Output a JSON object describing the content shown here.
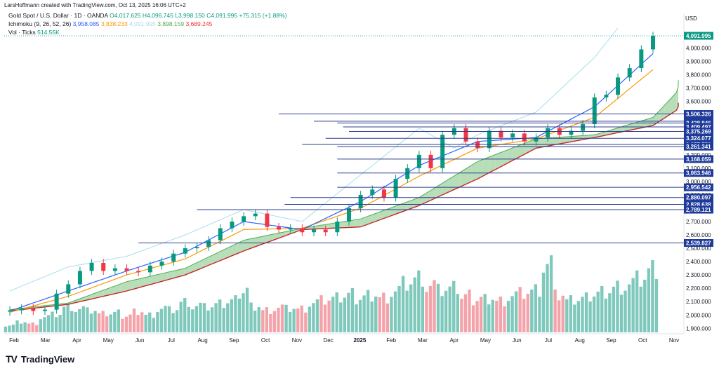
{
  "header": {
    "author_line": "LarsHoffmann created with TradingView.com, Oct 13, 2025 16:06 UTC+2"
  },
  "legend": {
    "symbol": "Gold Spot / U.S. Dollar · 1D · OANDA",
    "ohlc": [
      "O4,017.625",
      "H4,096.745",
      "L3,998.150",
      "C4,091.995",
      "+75.315 (+1.88%)"
    ],
    "ichimoku_label": "Ichimoku (9, 26, 52, 26)",
    "ichimoku_values": [
      "3,958.085",
      "3,838.233",
      "4,091.995",
      "3,898.159",
      "3,689.245"
    ],
    "vol_label": "Vol · Ticks",
    "vol_value": "514.55K"
  },
  "currency": "USD",
  "brand": {
    "logo": "TV",
    "name": "TradingView"
  },
  "colors": {
    "tenkan": "#2962ff",
    "kijun": "#ff9800",
    "chikou": "#a9dcf0",
    "span_a": "#4caf50",
    "span_b": "#c62828",
    "cloud_green": "#a5d6a7",
    "cloud_red": "#ef9a9a",
    "up": "#089981",
    "down": "#f23645",
    "level_line": "#2a3f8f",
    "last_price_bg": "#089981"
  },
  "chart_data": {
    "type": "candlestick_ichimoku",
    "title": "Gold Spot / U.S. Dollar · 1D · OANDA",
    "x_ticks": [
      "Feb",
      "Mar",
      "Apr",
      "May",
      "Jun",
      "Jul",
      "Aug",
      "Sep",
      "Oct",
      "Nov",
      "Dec",
      "2025",
      "Feb",
      "Mar",
      "Apr",
      "May",
      "Jun",
      "Jul",
      "Aug",
      "Sep",
      "Oct",
      "Nov"
    ],
    "y_ticks": [
      1900,
      2000,
      2100,
      2200,
      2300,
      2400,
      2500,
      2600,
      2700,
      2800,
      2900,
      3000,
      3100,
      3200,
      3300,
      3400,
      3500,
      3600,
      3700,
      3800,
      3900,
      4000
    ],
    "y_tick_labels": [
      "1,900.000",
      "2,000.000",
      "2,100.000",
      "2,200.000",
      "2,300.000",
      "2,400.000",
      "2,500.000",
      "2,600.000",
      "2,700.000",
      "2,800.000",
      "2,900.000",
      "3,000.000",
      "3,100.000",
      "3,200.000",
      "3,300.000",
      "3,400.000",
      "3,500.000",
      "3,600.000",
      "3,700.000",
      "3,800.000",
      "3,900.000",
      "4,000.000"
    ],
    "ylim": [
      1870,
      4150
    ],
    "price_path": [
      [
        0,
        2035
      ],
      [
        1,
        2050
      ],
      [
        2,
        2030
      ],
      [
        3,
        2040
      ],
      [
        4,
        2160
      ],
      [
        5,
        2230
      ],
      [
        6,
        2330
      ],
      [
        7,
        2390
      ],
      [
        8,
        2330
      ],
      [
        9,
        2350
      ],
      [
        10,
        2330
      ],
      [
        11,
        2320
      ],
      [
        12,
        2370
      ],
      [
        13,
        2400
      ],
      [
        14,
        2460
      ],
      [
        15,
        2500
      ],
      [
        16,
        2510
      ],
      [
        17,
        2560
      ],
      [
        18,
        2650
      ],
      [
        19,
        2700
      ],
      [
        20,
        2740
      ],
      [
        21,
        2760
      ],
      [
        22,
        2660
      ],
      [
        23,
        2640
      ],
      [
        24,
        2650
      ],
      [
        25,
        2620
      ],
      [
        26,
        2640
      ],
      [
        27,
        2620
      ],
      [
        28,
        2700
      ],
      [
        29,
        2800
      ],
      [
        30,
        2900
      ],
      [
        31,
        2940
      ],
      [
        32,
        2880
      ],
      [
        33,
        3020
      ],
      [
        34,
        3100
      ],
      [
        35,
        3200
      ],
      [
        36,
        3100
      ],
      [
        37,
        3350
      ],
      [
        38,
        3400
      ],
      [
        39,
        3300
      ],
      [
        40,
        3250
      ],
      [
        41,
        3380
      ],
      [
        42,
        3330
      ],
      [
        43,
        3360
      ],
      [
        44,
        3300
      ],
      [
        45,
        3330
      ],
      [
        46,
        3400
      ],
      [
        47,
        3350
      ],
      [
        48,
        3380
      ],
      [
        49,
        3430
      ],
      [
        50,
        3630
      ],
      [
        51,
        3650
      ],
      [
        52,
        3780
      ],
      [
        53,
        3850
      ],
      [
        54,
        3990
      ],
      [
        55,
        4092
      ]
    ],
    "price_path_x_units": "bar index (56 bars from Jan 2024 to Oct 13 2025)",
    "tenkan": [
      [
        0,
        2030
      ],
      [
        5,
        2180
      ],
      [
        10,
        2330
      ],
      [
        15,
        2470
      ],
      [
        20,
        2700
      ],
      [
        25,
        2640
      ],
      [
        30,
        2850
      ],
      [
        35,
        3120
      ],
      [
        40,
        3300
      ],
      [
        45,
        3330
      ],
      [
        50,
        3560
      ],
      [
        55,
        3958
      ]
    ],
    "kijun": [
      [
        0,
        2020
      ],
      [
        5,
        2140
      ],
      [
        10,
        2300
      ],
      [
        15,
        2420
      ],
      [
        20,
        2640
      ],
      [
        25,
        2650
      ],
      [
        30,
        2800
      ],
      [
        35,
        3040
      ],
      [
        40,
        3250
      ],
      [
        45,
        3320
      ],
      [
        50,
        3480
      ],
      [
        55,
        3838
      ]
    ],
    "span_a": [
      [
        0,
        2040
      ],
      [
        5,
        2090
      ],
      [
        10,
        2250
      ],
      [
        15,
        2350
      ],
      [
        20,
        2560
      ],
      [
        25,
        2650
      ],
      [
        30,
        2720
      ],
      [
        35,
        2880
      ],
      [
        40,
        3150
      ],
      [
        45,
        3320
      ],
      [
        50,
        3350
      ],
      [
        55,
        3480
      ],
      [
        58,
        3760
      ]
    ],
    "span_b": [
      [
        0,
        2030
      ],
      [
        5,
        2080
      ],
      [
        10,
        2180
      ],
      [
        15,
        2300
      ],
      [
        20,
        2480
      ],
      [
        25,
        2640
      ],
      [
        30,
        2660
      ],
      [
        35,
        2820
      ],
      [
        40,
        3020
      ],
      [
        45,
        3250
      ],
      [
        50,
        3330
      ],
      [
        55,
        3420
      ],
      [
        58,
        3590
      ]
    ],
    "chikou": [
      [
        0,
        2180
      ],
      [
        5,
        2360
      ],
      [
        10,
        2440
      ],
      [
        15,
        2600
      ],
      [
        20,
        2790
      ],
      [
        25,
        2700
      ],
      [
        30,
        3050
      ],
      [
        35,
        3400
      ],
      [
        38,
        3250
      ],
      [
        40,
        3350
      ],
      [
        45,
        3520
      ],
      [
        50,
        3930
      ],
      [
        52,
        4150
      ]
    ],
    "volume_ylim": [
      0,
      1200000
    ],
    "volume_samples": [
      120000,
      180000,
      150000,
      260000,
      300000,
      420000,
      380000,
      350000,
      300000,
      320000,
      280000,
      360000,
      300000,
      400000,
      380000,
      500000,
      430000,
      410000,
      460000,
      520000,
      700000,
      450000,
      380000,
      420000,
      400000,
      390000,
      480000,
      520000,
      560000,
      620000,
      580000,
      640000,
      600000,
      700000,
      820000,
      900000,
      760000,
      680000,
      720000,
      600000,
      560000,
      580000,
      540000,
      620000,
      660000,
      700000,
      1120000,
      600000,
      520000,
      560000,
      640000,
      700000,
      780000,
      820000,
      900000,
      1050000
    ],
    "horizontal_levels": [
      {
        "price": 3506.326,
        "label": "3,506.326",
        "from": 23.0
      },
      {
        "price": 3451.623,
        "label": "3,451.623",
        "from": 26.0
      },
      {
        "price": 3438.846,
        "label": "3,438.846",
        "from": 28.0
      },
      {
        "price": 3409.497,
        "label": "3,409.497",
        "from": 28.5
      },
      {
        "price": 3375.269,
        "label": "3,375.269",
        "from": 29.0
      },
      {
        "price": 3324.077,
        "label": "3,324.077",
        "from": 27.0
      },
      {
        "price": 3277.75,
        "label": "3,277.750",
        "from": 25.0
      },
      {
        "price": 3261.341,
        "label": "3,261.341",
        "from": 28.0
      },
      {
        "price": 3168.059,
        "label": "3,168.059",
        "from": 28.0
      },
      {
        "price": 3063.946,
        "label": "3,063.946",
        "from": 28.0
      },
      {
        "price": 2956.542,
        "label": "2,956.542",
        "from": 28.0
      },
      {
        "price": 2880.097,
        "label": "2,880.097",
        "from": 24.0
      },
      {
        "price": 2828.638,
        "label": "2,828.638",
        "from": 23.5
      },
      {
        "price": 2789.121,
        "label": "2,789.121",
        "from": 16.0
      },
      {
        "price": 2539.827,
        "label": "2,539.827",
        "from": 11.0
      }
    ],
    "last_price": {
      "price": 4091.995,
      "label": "4,091.995"
    }
  }
}
